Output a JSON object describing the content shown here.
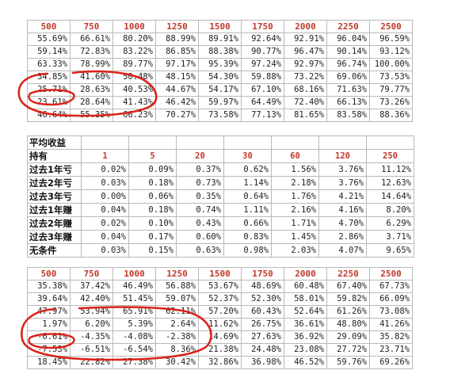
{
  "table1": {
    "header": [
      "500",
      "750",
      "1000",
      "1250",
      "1500",
      "1750",
      "2000",
      "2250",
      "2500"
    ],
    "rows": [
      [
        "55.69%",
        "66.61%",
        "80.20%",
        "88.99%",
        "89.91%",
        "92.64%",
        "92.91%",
        "96.04%",
        "96.59%"
      ],
      [
        "59.14%",
        "72.83%",
        "83.22%",
        "86.85%",
        "88.38%",
        "90.77%",
        "96.47%",
        "90.14%",
        "93.12%"
      ],
      [
        "63.33%",
        "78.99%",
        "89.77%",
        "97.17%",
        "95.39%",
        "97.24%",
        "92.97%",
        "96.74%",
        "100.00%"
      ],
      [
        "34.85%",
        "41.60%",
        "50.48%",
        "48.15%",
        "54.30%",
        "59.88%",
        "73.22%",
        "69.06%",
        "73.53%"
      ],
      [
        "25.71%",
        "28.63%",
        "40.53%",
        "44.67%",
        "54.17%",
        "67.10%",
        "68.16%",
        "71.63%",
        "79.77%"
      ],
      [
        "23.61%",
        "28.64%",
        "41.43%",
        "46.42%",
        "59.97%",
        "64.49%",
        "72.40%",
        "66.13%",
        "73.26%"
      ],
      [
        "46.64%",
        "55.35%",
        "66.23%",
        "70.27%",
        "73.58%",
        "77.13%",
        "81.65%",
        "83.58%",
        "88.36%"
      ]
    ]
  },
  "table2": {
    "title": "平均收益",
    "holding_label": "持有",
    "header": [
      "1",
      "5",
      "20",
      "30",
      "60",
      "120",
      "250"
    ],
    "rows": [
      {
        "label": "过去1年亏",
        "values": [
          "0.02%",
          "0.09%",
          "0.37%",
          "0.62%",
          "1.56%",
          "3.76%",
          "11.12%"
        ]
      },
      {
        "label": "过去2年亏",
        "values": [
          "0.03%",
          "0.18%",
          "0.73%",
          "1.14%",
          "2.18%",
          "3.76%",
          "12.63%"
        ]
      },
      {
        "label": "过去3年亏",
        "values": [
          "0.00%",
          "0.06%",
          "0.35%",
          "0.64%",
          "1.76%",
          "4.21%",
          "14.64%"
        ]
      },
      {
        "label": "过去1年赚",
        "values": [
          "0.04%",
          "0.18%",
          "0.74%",
          "1.11%",
          "2.16%",
          "4.16%",
          "8.20%"
        ]
      },
      {
        "label": "过去2年赚",
        "values": [
          "0.02%",
          "0.10%",
          "0.43%",
          "0.66%",
          "1.71%",
          "4.70%",
          "6.29%"
        ]
      },
      {
        "label": "过去3年赚",
        "values": [
          "0.04%",
          "0.17%",
          "0.60%",
          "0.83%",
          "1.45%",
          "2.86%",
          "3.71%"
        ]
      },
      {
        "label": "无条件",
        "values": [
          "0.03%",
          "0.15%",
          "0.63%",
          "0.98%",
          "2.03%",
          "4.07%",
          "9.65%"
        ]
      }
    ]
  },
  "table3": {
    "header": [
      "500",
      "750",
      "1000",
      "1250",
      "1500",
      "1750",
      "2000",
      "2250",
      "2500"
    ],
    "rows": [
      [
        "35.38%",
        "37.42%",
        "46.49%",
        "56.88%",
        "53.67%",
        "48.69%",
        "60.48%",
        "67.40%",
        "67.73%"
      ],
      [
        "39.64%",
        "42.40%",
        "51.45%",
        "59.07%",
        "52.37%",
        "52.30%",
        "58.01%",
        "59.82%",
        "66.09%"
      ],
      [
        "47.97%",
        "53.94%",
        "65.91%",
        "62.11%",
        "57.20%",
        "60.43%",
        "52.64%",
        "61.26%",
        "73.08%"
      ],
      [
        "1.97%",
        "6.20%",
        "5.39%",
        "2.64%",
        "11.62%",
        "26.75%",
        "36.61%",
        "48.80%",
        "41.26%"
      ],
      [
        "-6.61%",
        "-4.35%",
        "-4.08%",
        "-2.38%",
        "14.69%",
        "27.63%",
        "36.92%",
        "29.09%",
        "35.82%"
      ],
      [
        "-7.53%",
        "-6.51%",
        "-6.54%",
        "8.36%",
        "21.38%",
        "24.48%",
        "23.08%",
        "27.72%",
        "23.71%"
      ],
      [
        "18.45%",
        "22.82%",
        "27.38%",
        "30.42%",
        "32.86%",
        "36.98%",
        "46.52%",
        "59.76%",
        "69.26%"
      ]
    ]
  },
  "colors": {
    "header_red": "#c0392b",
    "annotation_red": "#d9231a",
    "grid": "#b9b9b9"
  }
}
